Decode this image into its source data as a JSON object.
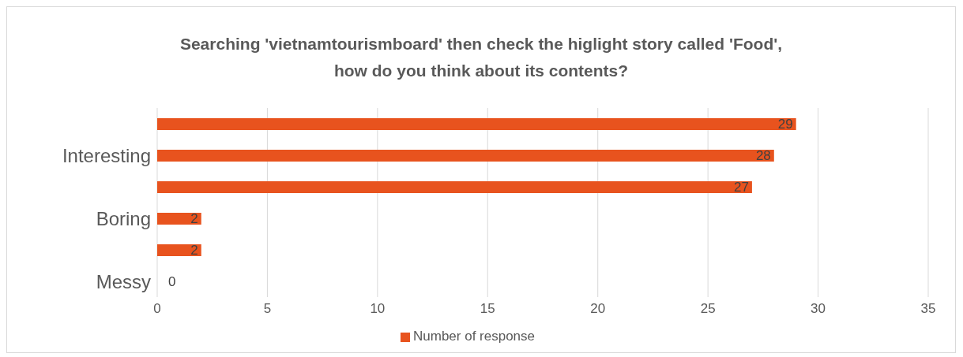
{
  "chart_data": {
    "type": "bar",
    "orientation": "horizontal",
    "title": "Searching 'vietnamtourismboard' then check the higlight story called 'Food',\nhow do you think about its contents?",
    "categories": [
      null,
      "Interesting",
      null,
      "Boring",
      null,
      "Messy"
    ],
    "series": [
      {
        "name": "Number of response",
        "color": "#e8531e",
        "values": [
          29,
          28,
          27,
          2,
          2,
          0
        ]
      }
    ],
    "xlim": [
      0,
      35
    ],
    "xticks": [
      0,
      5,
      10,
      15,
      20,
      25,
      30,
      35
    ],
    "grid": "x",
    "legend": "bottom",
    "data_labels": true
  }
}
